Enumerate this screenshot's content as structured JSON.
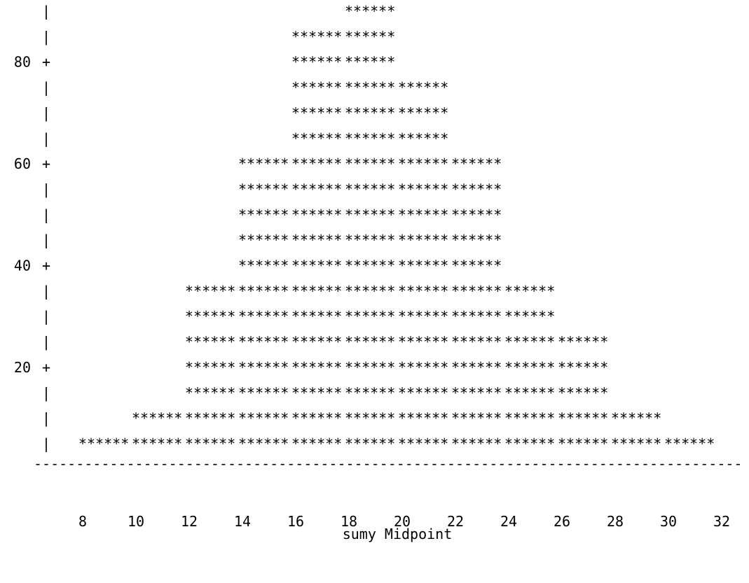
{
  "chart_data": {
    "type": "bar",
    "xlabel": "sumy Midpoint",
    "ylabel": "",
    "y_ticks": [
      "20",
      "40",
      "60",
      "80"
    ],
    "x_ticks": [
      "8",
      "10",
      "12",
      "14",
      "16",
      "18",
      "20",
      "22",
      "24",
      "26",
      "28",
      "30",
      "32"
    ],
    "categories": [
      "8",
      "10",
      "12",
      "14",
      "16",
      "18",
      "20",
      "22",
      "24",
      "26",
      "28",
      "30",
      "32"
    ],
    "values": [
      0,
      5,
      10,
      35,
      60,
      85,
      90,
      75,
      60,
      35,
      25,
      10,
      5
    ],
    "ylim": [
      0,
      90
    ],
    "bar_char": "*",
    "tick_marker": "+",
    "axis_char": "|",
    "baseline_char": "-",
    "grid": false
  },
  "colors": {
    "text": "#000000",
    "background": "#ffffff"
  }
}
